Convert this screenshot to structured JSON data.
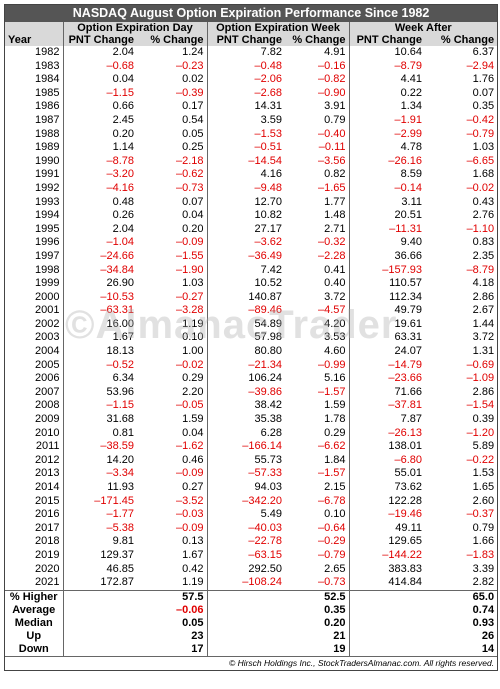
{
  "title": "NASDAQ August Option Expiration Performance Since 1982",
  "groups": [
    "Option Expiration Day",
    "Option Expiration Week",
    "Week After"
  ],
  "columns": [
    "Year",
    "PNT Change",
    "% Change",
    "PNT Change",
    "% Change",
    "PNT Change",
    "% Change"
  ],
  "rows": [
    [
      1982,
      "2.04",
      "1.24",
      "7.82",
      "4.91",
      "10.64",
      "6.37"
    ],
    [
      1983,
      "–0.68",
      "–0.23",
      "–0.48",
      "–0.16",
      "–8.79",
      "–2.94"
    ],
    [
      1984,
      "0.04",
      "0.02",
      "–2.06",
      "–0.82",
      "4.41",
      "1.76"
    ],
    [
      1985,
      "–1.15",
      "–0.39",
      "–2.68",
      "–0.90",
      "0.22",
      "0.07"
    ],
    [
      1986,
      "0.66",
      "0.17",
      "14.31",
      "3.91",
      "1.34",
      "0.35"
    ],
    [
      1987,
      "2.45",
      "0.54",
      "3.59",
      "0.79",
      "–1.91",
      "–0.42"
    ],
    [
      1988,
      "0.20",
      "0.05",
      "–1.53",
      "–0.40",
      "–2.99",
      "–0.79"
    ],
    [
      1989,
      "1.14",
      "0.25",
      "–0.51",
      "–0.11",
      "4.78",
      "1.03"
    ],
    [
      1990,
      "–8.78",
      "–2.18",
      "–14.54",
      "–3.56",
      "–26.16",
      "–6.65"
    ],
    [
      1991,
      "–3.20",
      "–0.62",
      "4.16",
      "0.82",
      "8.59",
      "1.68"
    ],
    [
      1992,
      "–4.16",
      "–0.73",
      "–9.48",
      "–1.65",
      "–0.14",
      "–0.02"
    ],
    [
      1993,
      "0.48",
      "0.07",
      "12.70",
      "1.77",
      "3.11",
      "0.43"
    ],
    [
      1994,
      "0.26",
      "0.04",
      "10.82",
      "1.48",
      "20.51",
      "2.76"
    ],
    [
      1995,
      "2.04",
      "0.20",
      "27.17",
      "2.71",
      "–11.31",
      "–1.10"
    ],
    [
      1996,
      "–1.04",
      "–0.09",
      "–3.62",
      "–0.32",
      "9.40",
      "0.83"
    ],
    [
      1997,
      "–24.66",
      "–1.55",
      "–36.49",
      "–2.28",
      "36.66",
      "2.35"
    ],
    [
      1998,
      "–34.84",
      "–1.90",
      "7.42",
      "0.41",
      "–157.93",
      "–8.79"
    ],
    [
      1999,
      "26.90",
      "1.03",
      "10.52",
      "0.40",
      "110.57",
      "4.18"
    ],
    [
      2000,
      "–10.53",
      "–0.27",
      "140.87",
      "3.72",
      "112.34",
      "2.86"
    ],
    [
      2001,
      "–63.31",
      "–3.28",
      "–89.46",
      "–4.57",
      "49.79",
      "2.67"
    ],
    [
      2002,
      "16.00",
      "1.19",
      "54.89",
      "4.20",
      "19.61",
      "1.44"
    ],
    [
      2003,
      "1.67",
      "0.10",
      "57.98",
      "3.53",
      "63.31",
      "3.72"
    ],
    [
      2004,
      "18.13",
      "1.00",
      "80.80",
      "4.60",
      "24.07",
      "1.31"
    ],
    [
      2005,
      "–0.52",
      "–0.02",
      "–21.34",
      "–0.99",
      "–14.79",
      "–0.69"
    ],
    [
      2006,
      "6.34",
      "0.29",
      "106.24",
      "5.16",
      "–23.66",
      "–1.09"
    ],
    [
      2007,
      "53.96",
      "2.20",
      "–39.86",
      "–1.57",
      "71.66",
      "2.86"
    ],
    [
      2008,
      "–1.15",
      "–0.05",
      "38.42",
      "1.59",
      "–37.81",
      "–1.54"
    ],
    [
      2009,
      "31.68",
      "1.59",
      "35.38",
      "1.78",
      "7.87",
      "0.39"
    ],
    [
      2010,
      "0.81",
      "0.04",
      "6.28",
      "0.29",
      "–26.13",
      "–1.20"
    ],
    [
      2011,
      "–38.59",
      "–1.62",
      "–166.14",
      "–6.62",
      "138.01",
      "5.89"
    ],
    [
      2012,
      "14.20",
      "0.46",
      "55.73",
      "1.84",
      "–6.80",
      "–0.22"
    ],
    [
      2013,
      "–3.34",
      "–0.09",
      "–57.33",
      "–1.57",
      "55.01",
      "1.53"
    ],
    [
      2014,
      "11.93",
      "0.27",
      "94.03",
      "2.15",
      "73.62",
      "1.65"
    ],
    [
      2015,
      "–171.45",
      "–3.52",
      "–342.20",
      "–6.78",
      "122.28",
      "2.60"
    ],
    [
      2016,
      "–1.77",
      "–0.03",
      "5.49",
      "0.10",
      "–19.46",
      "–0.37"
    ],
    [
      2017,
      "–5.38",
      "–0.09",
      "–40.03",
      "–0.64",
      "49.11",
      "0.79"
    ],
    [
      2018,
      "9.81",
      "0.13",
      "–22.78",
      "–0.29",
      "129.65",
      "1.66"
    ],
    [
      2019,
      "129.37",
      "1.67",
      "–63.15",
      "–0.79",
      "–144.22",
      "–1.83"
    ],
    [
      2020,
      "46.85",
      "0.42",
      "292.50",
      "2.65",
      "383.83",
      "3.39"
    ],
    [
      2021,
      "172.87",
      "1.19",
      "–108.24",
      "–0.73",
      "414.84",
      "2.82"
    ]
  ],
  "summary": [
    {
      "label": "% Higher",
      "values": [
        "57.5",
        "52.5",
        "65.0"
      ]
    },
    {
      "label": "Average",
      "values": [
        "–0.06",
        "0.35",
        "0.74"
      ]
    },
    {
      "label": "Median",
      "values": [
        "0.05",
        "0.20",
        "0.93"
      ]
    },
    {
      "label": "Up",
      "values": [
        "23",
        "21",
        "26"
      ]
    },
    {
      "label": "Down",
      "values": [
        "17",
        "19",
        "14"
      ]
    }
  ],
  "watermark": "©AlmanacTrader",
  "footer": "© Hirsch Holdings Inc., StockTradersAlmanac.com. All rights reserved."
}
